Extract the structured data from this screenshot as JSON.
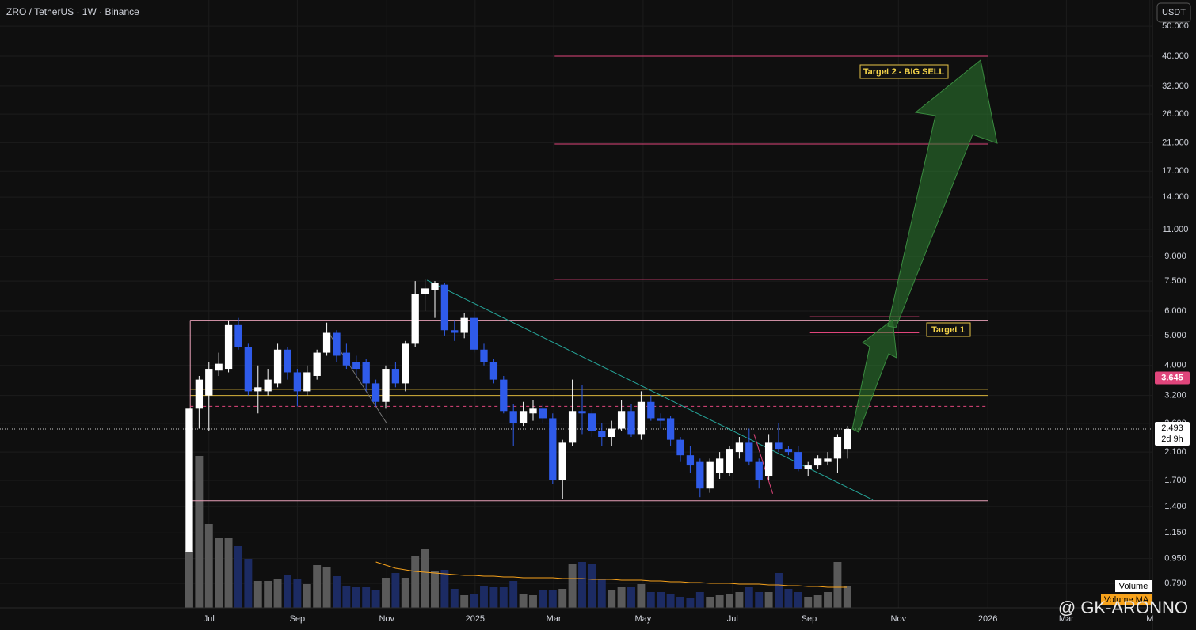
{
  "chart_data": {
    "type": "candlestick",
    "title": "ZRO / TetherUS · 1W · Binance",
    "currency": "USDT",
    "log_scale": true,
    "grid": true,
    "x": [
      0,
      1,
      2,
      3,
      4,
      5,
      6,
      7,
      8,
      9,
      10,
      11,
      12,
      13,
      14,
      15,
      16,
      17,
      18,
      19,
      20,
      21,
      22,
      23,
      24,
      25,
      26,
      27,
      28,
      29,
      30,
      31,
      32,
      33,
      34,
      35,
      36,
      37,
      38,
      39,
      40,
      41,
      42,
      43,
      44,
      45,
      46,
      47,
      48,
      49,
      50,
      51,
      52,
      53,
      54,
      55,
      56,
      57,
      58,
      59,
      60,
      61,
      62,
      63,
      64,
      65,
      66,
      67
    ],
    "open": [
      1.0,
      2.9,
      3.2,
      3.85,
      3.9,
      5.4,
      4.6,
      3.3,
      3.3,
      3.5,
      4.5,
      3.8,
      3.3,
      3.7,
      4.4,
      5.1,
      4.4,
      4.1,
      4.1,
      3.5,
      3.05,
      3.9,
      3.5,
      4.7,
      6.8,
      7.0,
      7.3,
      5.2,
      5.1,
      5.7,
      4.5,
      4.1,
      3.6,
      2.85,
      2.6,
      2.8,
      2.9,
      2.7,
      1.7,
      2.25,
      2.85,
      2.8,
      2.45,
      2.35,
      2.5,
      2.85,
      2.4,
      3.05,
      2.7,
      2.7,
      2.3,
      2.05,
      1.95,
      1.6,
      1.8,
      1.8,
      2.1,
      2.25,
      1.95,
      1.75,
      2.25,
      2.15,
      2.1,
      1.85,
      1.9,
      1.95,
      2.0,
      2.15
    ],
    "high": [
      2.9,
      3.7,
      4.1,
      4.4,
      5.6,
      5.7,
      4.7,
      4.0,
      3.9,
      4.7,
      4.6,
      3.9,
      4.0,
      4.5,
      5.5,
      5.2,
      4.7,
      4.3,
      4.2,
      3.6,
      4.0,
      4.1,
      4.8,
      7.5,
      7.6,
      7.5,
      7.4,
      5.6,
      5.9,
      6.0,
      4.7,
      4.2,
      3.7,
      3.0,
      3.05,
      3.1,
      3.0,
      2.8,
      2.3,
      3.6,
      3.45,
      2.9,
      2.6,
      2.65,
      3.1,
      3.0,
      3.3,
      3.2,
      2.8,
      2.75,
      2.35,
      2.2,
      2.0,
      2.0,
      2.1,
      2.2,
      2.35,
      2.5,
      2.0,
      2.4,
      2.6,
      2.2,
      2.2,
      1.95,
      2.05,
      2.1,
      2.4,
      2.55
    ],
    "low": [
      1.0,
      2.5,
      2.45,
      3.7,
      3.8,
      4.5,
      3.2,
      2.8,
      3.2,
      3.4,
      3.6,
      2.95,
      3.2,
      3.6,
      4.3,
      4.1,
      3.9,
      3.7,
      3.3,
      2.95,
      2.9,
      3.4,
      3.3,
      4.6,
      6.0,
      5.7,
      5.0,
      4.8,
      4.9,
      4.4,
      4.0,
      3.5,
      2.8,
      2.2,
      2.55,
      2.65,
      2.6,
      1.65,
      1.48,
      2.2,
      2.4,
      2.35,
      2.2,
      2.2,
      2.45,
      2.35,
      2.3,
      2.65,
      2.5,
      2.2,
      1.95,
      1.8,
      1.5,
      1.55,
      1.72,
      1.75,
      2.0,
      1.9,
      1.6,
      1.7,
      2.1,
      2.05,
      1.82,
      1.75,
      1.85,
      1.9,
      1.8,
      2.0
    ],
    "close": [
      2.9,
      3.6,
      3.9,
      4.05,
      5.4,
      4.6,
      3.3,
      3.4,
      3.6,
      4.5,
      3.8,
      3.3,
      3.8,
      4.4,
      5.1,
      4.3,
      4.0,
      3.9,
      3.5,
      3.05,
      3.9,
      3.5,
      4.7,
      6.8,
      7.1,
      7.4,
      5.2,
      5.1,
      5.7,
      4.5,
      4.1,
      3.6,
      2.85,
      2.6,
      2.85,
      2.9,
      2.7,
      1.7,
      2.25,
      2.85,
      2.8,
      2.45,
      2.35,
      2.5,
      2.85,
      2.4,
      3.05,
      2.7,
      2.65,
      2.3,
      2.05,
      1.9,
      1.6,
      1.95,
      2.0,
      2.15,
      2.25,
      1.95,
      1.7,
      2.25,
      2.15,
      2.1,
      1.85,
      1.9,
      2.0,
      2.0,
      2.35,
      2.493
    ],
    "up_color": "#ffffff",
    "down_color": "#2f5bea",
    "volume_name": "Volume",
    "volume": [
      72,
      192,
      106,
      88,
      88,
      78,
      62,
      34,
      34,
      36,
      42,
      36,
      30,
      54,
      52,
      40,
      28,
      26,
      26,
      22,
      38,
      44,
      38,
      66,
      74,
      46,
      48,
      24,
      16,
      18,
      28,
      26,
      26,
      34,
      18,
      16,
      22,
      22,
      24,
      56,
      58,
      56,
      36,
      22,
      26,
      26,
      30,
      20,
      20,
      18,
      14,
      12,
      20,
      14,
      16,
      18,
      20,
      26,
      20,
      20,
      44,
      24,
      20,
      14,
      16,
      20,
      58,
      28
    ],
    "volume_up_color": "#5a5a5a",
    "volume_down_color": "#1c2b63",
    "volume_ma_name": "Volume MA",
    "volume_ma_color": "#f7a21b",
    "volume_ma": [
      null,
      null,
      null,
      null,
      null,
      null,
      null,
      null,
      null,
      null,
      null,
      null,
      null,
      null,
      null,
      null,
      null,
      null,
      null,
      58,
      54,
      50,
      48,
      46,
      45,
      44,
      43,
      42,
      41,
      41,
      40,
      40,
      39,
      39,
      38,
      38,
      38,
      38,
      37,
      37,
      37,
      36,
      36,
      36,
      35,
      35,
      35,
      34,
      34,
      33,
      33,
      32,
      32,
      31,
      31,
      31,
      30,
      30,
      30,
      29,
      29,
      28,
      28,
      27,
      27,
      26,
      26,
      26
    ],
    "xlim": [
      -19.27,
      98.06
    ],
    "xticks": [
      {
        "value": 2.0,
        "label": "Jul"
      },
      {
        "value": 11.0,
        "label": "Sep"
      },
      {
        "value": 20.1,
        "label": "Nov"
      },
      {
        "value": 29.1,
        "label": "2025"
      },
      {
        "value": 37.1,
        "label": "Mar"
      },
      {
        "value": 46.2,
        "label": "May"
      },
      {
        "value": 55.3,
        "label": "Jul"
      },
      {
        "value": 63.1,
        "label": "Sep"
      },
      {
        "value": 72.2,
        "label": "Nov"
      },
      {
        "value": 81.3,
        "label": "2026"
      },
      {
        "value": 89.3,
        "label": "Mar"
      },
      {
        "value": 97.8,
        "label": "M"
      }
    ],
    "ylim": [
      0.658,
      60.8
    ],
    "yticks": [
      {
        "value": 50,
        "label": "50.000"
      },
      {
        "value": 40,
        "label": "40.000"
      },
      {
        "value": 32,
        "label": "32.000"
      },
      {
        "value": 26,
        "label": "26.000"
      },
      {
        "value": 21,
        "label": "21.000"
      },
      {
        "value": 17,
        "label": "17.000"
      },
      {
        "value": 14,
        "label": "14.000"
      },
      {
        "value": 11,
        "label": "11.000"
      },
      {
        "value": 9,
        "label": "9.000"
      },
      {
        "value": 7.5,
        "label": "7.500"
      },
      {
        "value": 6,
        "label": "6.000"
      },
      {
        "value": 5,
        "label": "5.000"
      },
      {
        "value": 4,
        "label": "4.000"
      },
      {
        "value": 3.2,
        "label": "3.200"
      },
      {
        "value": 2.6,
        "label": "2.600"
      },
      {
        "value": 2.1,
        "label": "2.100"
      },
      {
        "value": 1.7,
        "label": "1.700"
      },
      {
        "value": 1.4,
        "label": "1.400"
      },
      {
        "value": 1.15,
        "label": "1.150"
      },
      {
        "value": 0.95,
        "label": "0.950"
      },
      {
        "value": 0.79,
        "label": "0.790"
      }
    ],
    "levels": [
      {
        "value": 40,
        "x": [
          37.2,
          81.3
        ],
        "color": "#e0457b"
      },
      {
        "value": 20.8,
        "x": [
          37.2,
          81.3
        ],
        "color": "#e0457b"
      },
      {
        "value": 15,
        "x": [
          37.2,
          81.3
        ],
        "color": "#e0457b"
      },
      {
        "value": 7.6,
        "x": [
          37.2,
          81.3
        ],
        "color": "#e0457b"
      },
      {
        "value": 5.6,
        "x": [
          0.1,
          81.3
        ],
        "color": "#e8a0b8"
      },
      {
        "value": 5.75,
        "x": [
          63.2,
          74.3
        ],
        "color": "#e0457b"
      },
      {
        "value": 5.1,
        "x": [
          63.2,
          74.3
        ],
        "color": "#e0457b"
      },
      {
        "value": 3.35,
        "x": [
          0.1,
          81.3
        ],
        "color": "#d8b43a"
      },
      {
        "value": 3.2,
        "x": [
          0.1,
          81.3
        ],
        "color": "#d8b43a"
      },
      {
        "value": 1.46,
        "x": [
          0.1,
          81.3
        ],
        "color": "#e8a0b8"
      }
    ],
    "trendlines": [
      {
        "x": [
          24.2,
          69.6
        ],
        "y": [
          7.55,
          1.47
        ],
        "color": "#26a69a"
      },
      {
        "x": [
          14.2,
          20.1
        ],
        "y": [
          5.1,
          2.6
        ],
        "color": "#777777"
      },
      {
        "x": [
          57.5,
          59.4
        ],
        "y": [
          2.4,
          1.54
        ],
        "color": "#e0457b"
      }
    ],
    "dashed_level": 2.95,
    "alert_price": 3.645,
    "last_price": 2.493,
    "countdown": "2d 9h",
    "annotations": [
      "Target 1",
      "Target 2 - BIG SELL"
    ],
    "watermark": "@ GK-ARONNO"
  }
}
